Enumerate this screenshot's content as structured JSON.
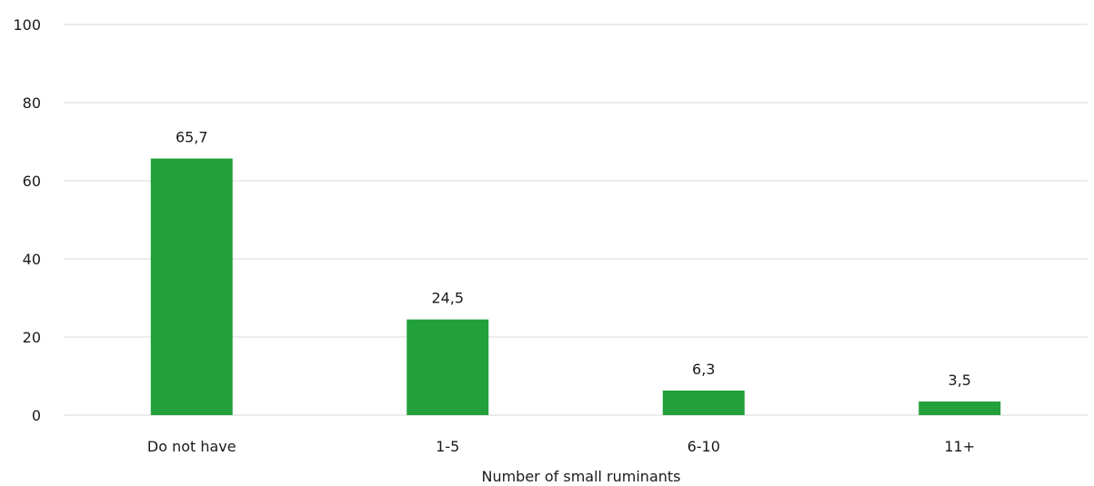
{
  "chart_data": {
    "type": "bar",
    "categories": [
      "Do not have",
      "1-5",
      "6-10",
      "11+"
    ],
    "series": [
      {
        "values": [
          65.7,
          24.5,
          6.3,
          3.5
        ]
      }
    ],
    "data_labels": [
      "65,7",
      "24,5",
      "6,3",
      "3,5"
    ],
    "y_ticks": [
      "0",
      "20",
      "40",
      "60",
      "80",
      "100"
    ],
    "y_tick_values": [
      0,
      20,
      40,
      60,
      80,
      100
    ],
    "ylim": [
      0,
      100
    ],
    "xlabel": "Number of small ruminants",
    "ylabel": "",
    "grid": true,
    "legend": "none",
    "bar_color": "#22a13a",
    "grid_color": "#d9d9d9"
  }
}
